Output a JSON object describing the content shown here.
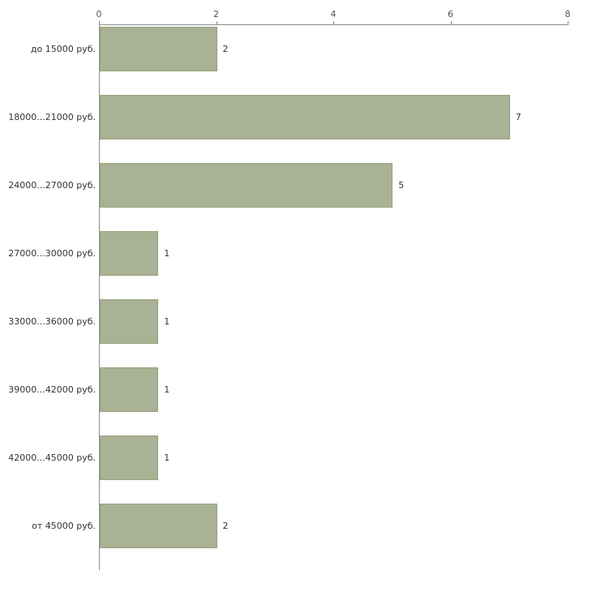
{
  "chart_data": {
    "type": "bar",
    "orientation": "horizontal",
    "title": "",
    "xlabel": "",
    "ylabel": "",
    "categories": [
      "до 15000 руб.",
      "18000...21000 руб.",
      "24000...27000 руб.",
      "27000...30000 руб.",
      "33000...36000 руб.",
      "39000...42000 руб.",
      "42000...45000 руб.",
      "от 45000 руб."
    ],
    "values": [
      2,
      7,
      5,
      1,
      1,
      1,
      1,
      2
    ],
    "xlim": [
      0,
      8
    ],
    "x_ticks": [
      0,
      2,
      4,
      6,
      8
    ],
    "grid": false,
    "legend": false,
    "bar_color": "#a9b294",
    "bar_border_color": "#97a37e",
    "axis_color": "#8c8c8c",
    "value_label_color": "#333333",
    "tick_label_color": "#555555"
  }
}
